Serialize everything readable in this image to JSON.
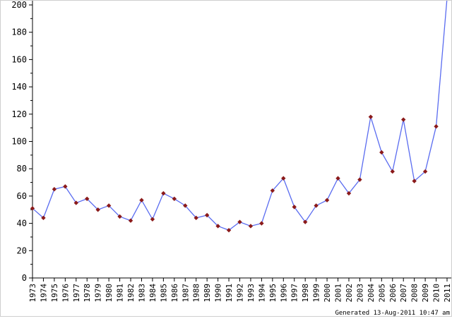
{
  "chart_data": {
    "type": "line",
    "title": "",
    "xlabel": "",
    "ylabel": "",
    "ylim": [
      0,
      200
    ],
    "yticks": [
      0,
      20,
      40,
      60,
      80,
      100,
      120,
      140,
      160,
      180,
      200
    ],
    "grid": false,
    "categories": [
      "1973",
      "1974",
      "1975",
      "1976",
      "1977",
      "1978",
      "1979",
      "1980",
      "1981",
      "1982",
      "1983",
      "1984",
      "1985",
      "1986",
      "1987",
      "1988",
      "1989",
      "1990",
      "1991",
      "1992",
      "1993",
      "1994",
      "1995",
      "1996",
      "1997",
      "1998",
      "1999",
      "2000",
      "2001",
      "2002",
      "2003",
      "2004",
      "2005",
      "2006",
      "2007",
      "2008",
      "2009",
      "2010",
      "2011"
    ],
    "series": [
      {
        "values": [
          51,
          44,
          65,
          67,
          55,
          58,
          50,
          53,
          45,
          42,
          57,
          43,
          62,
          58,
          53,
          44,
          46,
          38,
          35,
          41,
          38,
          40,
          64,
          73,
          52,
          41,
          53,
          57,
          73,
          62,
          72,
          118,
          92,
          78,
          116,
          71,
          78,
          111,
          205
        ],
        "line_color": "#5a6cf0",
        "marker_color": "#8b1a1a"
      }
    ]
  },
  "footer": {
    "generated_text": "Generated 13-Aug-2011 10:47 am"
  }
}
